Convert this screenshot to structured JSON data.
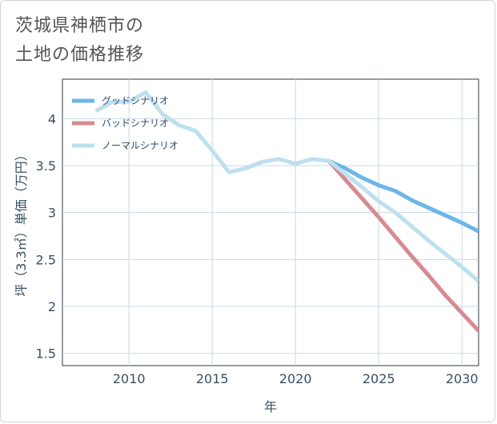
{
  "title_line1": "茨城県神栖市の",
  "title_line2": "土地の価格推移",
  "chart_data": {
    "type": "line",
    "xlabel": "年",
    "ylabel": "坪（3.3㎡）単価（万円）",
    "xlim": [
      2006,
      2031
    ],
    "ylim": [
      1.37,
      4.42
    ],
    "xticks": [
      2010,
      2015,
      2020,
      2025,
      2030
    ],
    "xtick_labels": [
      "2010",
      "2015",
      "2020",
      "2025",
      "2030"
    ],
    "yticks": [
      1.5,
      2,
      2.5,
      3,
      3.5,
      4
    ],
    "ytick_labels": [
      "1.5",
      "2",
      "2.5",
      "3",
      "3.5",
      "4"
    ],
    "grid": true,
    "legend_position": "top-left",
    "series": [
      {
        "name": "グッドシナリオ",
        "color": "#6cb6ea",
        "x": [
          2022,
          2023,
          2024,
          2025,
          2026,
          2027,
          2028,
          2029,
          2030,
          2031
        ],
        "y": [
          3.55,
          3.47,
          3.37,
          3.29,
          3.23,
          3.13,
          3.05,
          2.97,
          2.89,
          2.8
        ]
      },
      {
        "name": "バッドシナリオ",
        "color": "#da8990",
        "x": [
          2022,
          2023,
          2024,
          2025,
          2026,
          2027,
          2028,
          2029,
          2030,
          2031
        ],
        "y": [
          3.55,
          3.35,
          3.15,
          2.95,
          2.74,
          2.53,
          2.33,
          2.12,
          1.93,
          1.74
        ]
      },
      {
        "name": "ノーマルシナリオ",
        "color": "#bde0ee",
        "x": [
          2008,
          2009,
          2010,
          2011,
          2012,
          2013,
          2014,
          2015,
          2016,
          2017,
          2018,
          2019,
          2020,
          2021,
          2022,
          2023,
          2024,
          2025,
          2026,
          2027,
          2028,
          2029,
          2030,
          2031
        ],
        "y": [
          4.08,
          4.18,
          4.18,
          4.28,
          4.05,
          3.93,
          3.87,
          3.66,
          3.43,
          3.47,
          3.54,
          3.57,
          3.52,
          3.57,
          3.55,
          3.41,
          3.27,
          3.12,
          3.0,
          2.85,
          2.7,
          2.56,
          2.42,
          2.27
        ]
      }
    ]
  }
}
